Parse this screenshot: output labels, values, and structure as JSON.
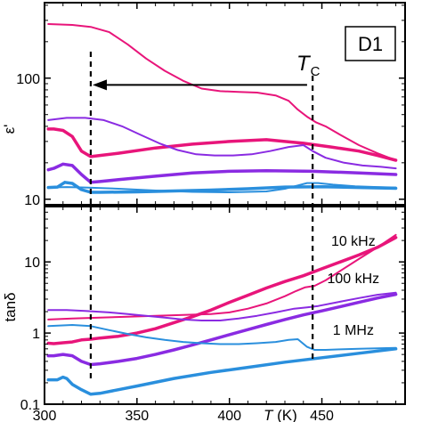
{
  "chart_data": [
    {
      "type": "line",
      "panel": "top",
      "ylabel": "ε'",
      "yscale": "log",
      "ylim": [
        9,
        420
      ],
      "xlim": [
        300,
        495
      ],
      "y_ticks": [
        {
          "value": 10,
          "label": "10"
        },
        {
          "value": 100,
          "label": "100"
        }
      ],
      "sample_label": "D1",
      "tc_label": "T",
      "tc_sub": "C",
      "tc_x": 445,
      "low_t_marker_x": 325,
      "arrow": {
        "from_x": 442,
        "to_x": 326,
        "y": 88
      },
      "series": [
        {
          "freq": "10 kHz",
          "branch": "heating",
          "color": "#e8157a",
          "width": 2,
          "points": [
            [
              302,
              280
            ],
            [
              315,
              275
            ],
            [
              325,
              265
            ],
            [
              335,
              240
            ],
            [
              345,
              190
            ],
            [
              355,
              145
            ],
            [
              365,
              115
            ],
            [
              375,
              95
            ],
            [
              385,
              82
            ],
            [
              395,
              78
            ],
            [
              405,
              77
            ],
            [
              415,
              76
            ],
            [
              425,
              72
            ],
            [
              432,
              65
            ],
            [
              437,
              55
            ],
            [
              442,
              48
            ],
            [
              447,
              43
            ],
            [
              452,
              40
            ],
            [
              460,
              34
            ],
            [
              470,
              28
            ],
            [
              480,
              24
            ],
            [
              490,
              21
            ]
          ]
        },
        {
          "freq": "10 kHz",
          "branch": "cooling",
          "color": "#e8157a",
          "width": 3.5,
          "points": [
            [
              490,
              21
            ],
            [
              480,
              23
            ],
            [
              470,
              25
            ],
            [
              455,
              27
            ],
            [
              440,
              29
            ],
            [
              420,
              31
            ],
            [
              400,
              30
            ],
            [
              380,
              28.5
            ],
            [
              360,
              26.5
            ],
            [
              340,
              24
            ],
            [
              330,
              23
            ],
            [
              325,
              22.5
            ],
            [
              320,
              25
            ],
            [
              315,
              33
            ],
            [
              310,
              37
            ],
            [
              305,
              38
            ],
            [
              302,
              38
            ]
          ]
        },
        {
          "freq": "100 kHz",
          "branch": "heating",
          "color": "#8a2be2",
          "width": 2,
          "points": [
            [
              302,
              45
            ],
            [
              312,
              47
            ],
            [
              322,
              47
            ],
            [
              332,
              45
            ],
            [
              342,
              40
            ],
            [
              352,
              34
            ],
            [
              362,
              29
            ],
            [
              372,
              25.5
            ],
            [
              382,
              23.5
            ],
            [
              392,
              23
            ],
            [
              402,
              23
            ],
            [
              412,
              23.5
            ],
            [
              422,
              25
            ],
            [
              432,
              27
            ],
            [
              440,
              28
            ],
            [
              445,
              25
            ],
            [
              452,
              22
            ],
            [
              462,
              20
            ],
            [
              472,
              19
            ],
            [
              482,
              18.5
            ],
            [
              490,
              18
            ]
          ]
        },
        {
          "freq": "100 kHz",
          "branch": "cooling",
          "color": "#8a2be2",
          "width": 3.5,
          "points": [
            [
              490,
              16
            ],
            [
              470,
              16.5
            ],
            [
              445,
              17
            ],
            [
              420,
              17.2
            ],
            [
              400,
              17
            ],
            [
              380,
              16.5
            ],
            [
              360,
              15.5
            ],
            [
              340,
              14.5
            ],
            [
              330,
              14
            ],
            [
              325,
              13.8
            ],
            [
              320,
              16
            ],
            [
              315,
              19
            ],
            [
              310,
              19.5
            ],
            [
              305,
              18
            ],
            [
              302,
              17.5
            ]
          ]
        },
        {
          "freq": "1 MHz",
          "branch": "heating",
          "color": "#2a8fdd",
          "width": 2,
          "points": [
            [
              302,
              12.5
            ],
            [
              312,
              12.6
            ],
            [
              322,
              12.5
            ],
            [
              340,
              12.2
            ],
            [
              360,
              11.8
            ],
            [
              380,
              11.5
            ],
            [
              400,
              11.4
            ],
            [
              420,
              11.6
            ],
            [
              430,
              12.2
            ],
            [
              437,
              13
            ],
            [
              442,
              13.6
            ],
            [
              448,
              13.6
            ],
            [
              456,
              13.2
            ],
            [
              468,
              12.8
            ],
            [
              480,
              12.6
            ],
            [
              490,
              12.5
            ]
          ]
        },
        {
          "freq": "1 MHz",
          "branch": "cooling",
          "color": "#2a8fdd",
          "width": 3.5,
          "points": [
            [
              490,
              12.3
            ],
            [
              470,
              12.5
            ],
            [
              450,
              12.7
            ],
            [
              430,
              12.6
            ],
            [
              410,
              12.2
            ],
            [
              390,
              11.9
            ],
            [
              370,
              11.7
            ],
            [
              350,
              11.5
            ],
            [
              330,
              11.4
            ],
            [
              325,
              11.4
            ],
            [
              320,
              12
            ],
            [
              315,
              13.5
            ],
            [
              311,
              13.8
            ],
            [
              307,
              12.6
            ],
            [
              302,
              12.5
            ]
          ]
        }
      ]
    },
    {
      "type": "line",
      "panel": "bottom",
      "ylabel": "tanδ",
      "xlabel_main": "T",
      "xlabel_unit": " (K)",
      "yscale": "log",
      "ylim": [
        0.1,
        60
      ],
      "xlim": [
        300,
        495
      ],
      "x_ticks": [
        {
          "value": 300,
          "label": "300"
        },
        {
          "value": 350,
          "label": "350"
        },
        {
          "value": 400,
          "label": "400"
        },
        {
          "value": 450,
          "label": "450"
        }
      ],
      "y_ticks": [
        {
          "value": 0.1,
          "label": "0.1"
        },
        {
          "value": 1,
          "label": "1"
        },
        {
          "value": 10,
          "label": "10"
        }
      ],
      "annotations": [
        {
          "text": "10 kHz",
          "x": 467,
          "y": 17
        },
        {
          "text": "100 kHz",
          "x": 467,
          "y": 5.0
        },
        {
          "text": "1 MHz",
          "x": 467,
          "y": 0.95
        }
      ],
      "series": [
        {
          "freq": "10 kHz",
          "branch": "heating",
          "color": "#e8157a",
          "width": 2,
          "points": [
            [
              302,
              1.55
            ],
            [
              315,
              1.6
            ],
            [
              330,
              1.65
            ],
            [
              345,
              1.7
            ],
            [
              360,
              1.75
            ],
            [
              375,
              1.8
            ],
            [
              390,
              1.85
            ],
            [
              400,
              1.95
            ],
            [
              410,
              2.2
            ],
            [
              420,
              2.6
            ],
            [
              430,
              3.3
            ],
            [
              436,
              3.9
            ],
            [
              441,
              4.4
            ],
            [
              446,
              4.6
            ],
            [
              452,
              5.5
            ],
            [
              460,
              7.5
            ],
            [
              470,
              11
            ],
            [
              480,
              16
            ],
            [
              490,
              24
            ]
          ]
        },
        {
          "freq": "10 kHz",
          "branch": "cooling",
          "color": "#e8157a",
          "width": 3.5,
          "points": [
            [
              490,
              22
            ],
            [
              480,
              16
            ],
            [
              470,
              12.5
            ],
            [
              460,
              10
            ],
            [
              450,
              8
            ],
            [
              440,
              6.4
            ],
            [
              430,
              5.3
            ],
            [
              420,
              4.3
            ],
            [
              410,
              3.4
            ],
            [
              400,
              2.7
            ],
            [
              390,
              2.1
            ],
            [
              380,
              1.7
            ],
            [
              370,
              1.4
            ],
            [
              360,
              1.15
            ],
            [
              350,
              1.0
            ],
            [
              340,
              0.9
            ],
            [
              330,
              0.85
            ],
            [
              325,
              0.82
            ],
            [
              320,
              0.8
            ],
            [
              315,
              0.75
            ],
            [
              310,
              0.73
            ],
            [
              305,
              0.71
            ],
            [
              302,
              0.72
            ]
          ]
        },
        {
          "freq": "100 kHz",
          "branch": "heating",
          "color": "#8a2be2",
          "width": 2,
          "points": [
            [
              302,
              2.1
            ],
            [
              312,
              2.1
            ],
            [
              322,
              2.05
            ],
            [
              335,
              1.95
            ],
            [
              345,
              1.85
            ],
            [
              355,
              1.75
            ],
            [
              365,
              1.65
            ],
            [
              375,
              1.55
            ],
            [
              385,
              1.5
            ],
            [
              395,
              1.5
            ],
            [
              405,
              1.6
            ],
            [
              415,
              1.75
            ],
            [
              425,
              1.95
            ],
            [
              435,
              2.2
            ],
            [
              442,
              2.3
            ],
            [
              448,
              2.4
            ],
            [
              458,
              2.7
            ],
            [
              470,
              3.1
            ],
            [
              480,
              3.45
            ],
            [
              490,
              3.7
            ]
          ]
        },
        {
          "freq": "100 kHz",
          "branch": "cooling",
          "color": "#8a2be2",
          "width": 3.5,
          "points": [
            [
              490,
              3.5
            ],
            [
              480,
              3.1
            ],
            [
              470,
              2.7
            ],
            [
              460,
              2.35
            ],
            [
              450,
              2.05
            ],
            [
              440,
              1.8
            ],
            [
              430,
              1.55
            ],
            [
              420,
              1.32
            ],
            [
              410,
              1.12
            ],
            [
              400,
              0.95
            ],
            [
              390,
              0.8
            ],
            [
              380,
              0.68
            ],
            [
              370,
              0.58
            ],
            [
              360,
              0.5
            ],
            [
              350,
              0.44
            ],
            [
              340,
              0.4
            ],
            [
              330,
              0.37
            ],
            [
              325,
              0.36
            ],
            [
              320,
              0.4
            ],
            [
              315,
              0.48
            ],
            [
              310,
              0.5
            ],
            [
              305,
              0.48
            ],
            [
              302,
              0.48
            ]
          ]
        },
        {
          "freq": "1 MHz",
          "branch": "heating",
          "color": "#2a8fdd",
          "width": 2,
          "points": [
            [
              302,
              1.25
            ],
            [
              315,
              1.3
            ],
            [
              325,
              1.25
            ],
            [
              335,
              1.1
            ],
            [
              345,
              0.97
            ],
            [
              355,
              0.87
            ],
            [
              365,
              0.8
            ],
            [
              375,
              0.75
            ],
            [
              385,
              0.72
            ],
            [
              395,
              0.7
            ],
            [
              405,
              0.7
            ],
            [
              415,
              0.72
            ],
            [
              425,
              0.75
            ],
            [
              432,
              0.8
            ],
            [
              437,
              0.82
            ],
            [
              442,
              0.64
            ],
            [
              446,
              0.58
            ],
            [
              452,
              0.58
            ],
            [
              460,
              0.59
            ],
            [
              470,
              0.6
            ],
            [
              480,
              0.61
            ],
            [
              490,
              0.62
            ]
          ]
        },
        {
          "freq": "1 MHz",
          "branch": "cooling",
          "color": "#2a8fdd",
          "width": 3.5,
          "points": [
            [
              490,
              0.6
            ],
            [
              470,
              0.52
            ],
            [
              450,
              0.45
            ],
            [
              430,
              0.39
            ],
            [
              410,
              0.33
            ],
            [
              390,
              0.28
            ],
            [
              370,
              0.23
            ],
            [
              350,
              0.18
            ],
            [
              340,
              0.16
            ],
            [
              330,
              0.142
            ],
            [
              325,
              0.138
            ],
            [
              320,
              0.16
            ],
            [
              315,
              0.19
            ],
            [
              312,
              0.23
            ],
            [
              310,
              0.24
            ],
            [
              307,
              0.22
            ],
            [
              302,
              0.22
            ]
          ]
        }
      ]
    }
  ]
}
